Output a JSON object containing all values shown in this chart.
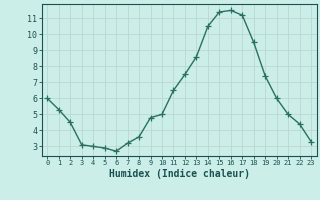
{
  "x": [
    0,
    1,
    2,
    3,
    4,
    5,
    6,
    7,
    8,
    9,
    10,
    11,
    12,
    13,
    14,
    15,
    16,
    17,
    18,
    19,
    20,
    21,
    22,
    23
  ],
  "y": [
    6.0,
    5.3,
    4.5,
    3.1,
    3.0,
    2.9,
    2.7,
    3.2,
    3.6,
    4.8,
    5.0,
    6.5,
    7.5,
    8.6,
    10.5,
    11.4,
    11.5,
    11.2,
    9.5,
    7.4,
    6.0,
    5.0,
    4.4,
    3.3
  ],
  "line_color": "#2a7060",
  "marker": "+",
  "marker_size": 4,
  "bg_color": "#cceee8",
  "grid_color": "#b8d8d0",
  "axis_color": "#1a5050",
  "xlabel": "Humidex (Indice chaleur)",
  "xlabel_fontsize": 7,
  "ytick_min": 3,
  "ytick_max": 11,
  "ylim": [
    2.4,
    11.9
  ],
  "xlim": [
    -0.5,
    23.5
  ],
  "figw": 3.2,
  "figh": 2.0,
  "dpi": 100
}
